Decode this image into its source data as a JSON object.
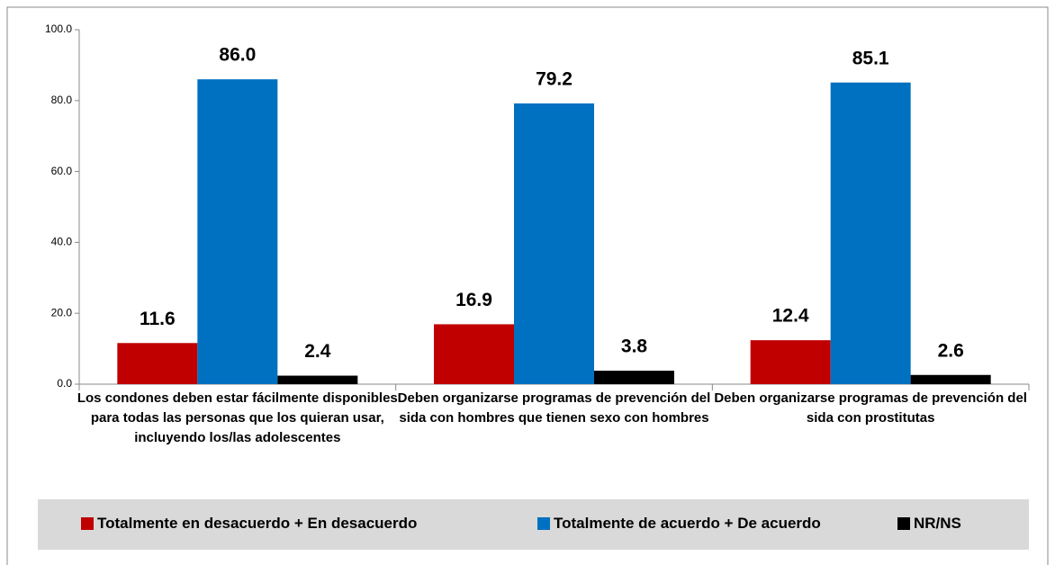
{
  "chart_data": {
    "type": "bar",
    "categories": [
      "Los condones deben estar fácilmente disponibles para todas las personas que los quieran usar, incluyendo los/las adolescentes",
      "Deben organizarse programas de prevención del sida con hombres que tienen sexo con hombres",
      "Deben organizarse programas de prevención del sida con prostitutas"
    ],
    "series": [
      {
        "name": "Totalmente en desacuerdo + En desacuerdo",
        "color": "#c00000",
        "values": [
          11.6,
          16.9,
          12.4
        ],
        "value_labels": [
          "11.6",
          "16.9",
          "12.4"
        ]
      },
      {
        "name": "Totalmente de acuerdo + De acuerdo",
        "color": "#0070c0",
        "values": [
          86.0,
          79.2,
          85.1
        ],
        "value_labels": [
          "86.0",
          "79.2",
          "85.1"
        ]
      },
      {
        "name": "NR/NS",
        "color": "#000000",
        "values": [
          2.4,
          3.8,
          2.6
        ],
        "value_labels": [
          "2.4",
          "3.8",
          "2.6"
        ]
      }
    ],
    "ylim": [
      0,
      100
    ],
    "yticks": [
      {
        "value": 0,
        "label": "0.0"
      },
      {
        "value": 20,
        "label": "20.0"
      },
      {
        "value": 40,
        "label": "40.0"
      },
      {
        "value": 60,
        "label": "60.0"
      },
      {
        "value": 80,
        "label": "80.0"
      },
      {
        "value": 100,
        "label": "100.0"
      }
    ],
    "grid": false,
    "legend": "bottom"
  }
}
